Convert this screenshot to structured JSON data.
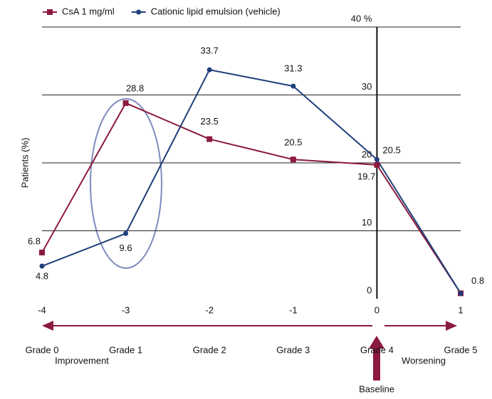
{
  "chart_data": {
    "type": "line",
    "y_label": "Patients (%)",
    "x": [
      -4,
      -3,
      -2,
      -1,
      0,
      1
    ],
    "xlim": [
      -4,
      1
    ],
    "xticks": [
      -4,
      -3,
      -2,
      -1,
      0,
      1
    ],
    "ylim": [
      0,
      40
    ],
    "yticks": [
      0,
      10,
      20,
      30,
      {
        "value": 40,
        "label": "40 %"
      }
    ],
    "grid": true,
    "grade_labels": [
      "Grade 0",
      "Grade 1",
      "Grade 2",
      "Grade 3",
      "Grade 4",
      "Grade 5"
    ],
    "annotations": {
      "improvement": "Improvement",
      "worsening": "Worsening",
      "baseline": "Baseline"
    },
    "series": [
      {
        "name": "CsA 1 mg/ml",
        "color": "#8b1a3e",
        "marker": "square",
        "values": [
          6.8,
          28.8,
          23.5,
          20.5,
          19.7,
          0.8
        ]
      },
      {
        "name": "Cationic lipid emulsion (vehicle)",
        "color": "#1f3f7a",
        "marker": "circle",
        "values": [
          4.8,
          9.6,
          33.7,
          31.3,
          20.5,
          0.8
        ]
      }
    ]
  }
}
